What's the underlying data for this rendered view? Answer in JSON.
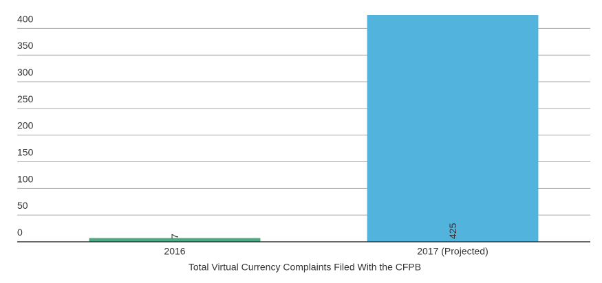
{
  "chart_data": {
    "type": "bar",
    "x_label": "Total Virtual Currency Complaints Filed With the CFPB",
    "categories": [
      "2016",
      "2017 (Projected)"
    ],
    "values": [
      7,
      425
    ],
    "colors": [
      "#4daa87",
      "#52b3dc"
    ],
    "ylim": [
      0,
      425
    ],
    "yticks": [
      0,
      50,
      100,
      150,
      200,
      250,
      300,
      350,
      400
    ],
    "grid": true
  }
}
